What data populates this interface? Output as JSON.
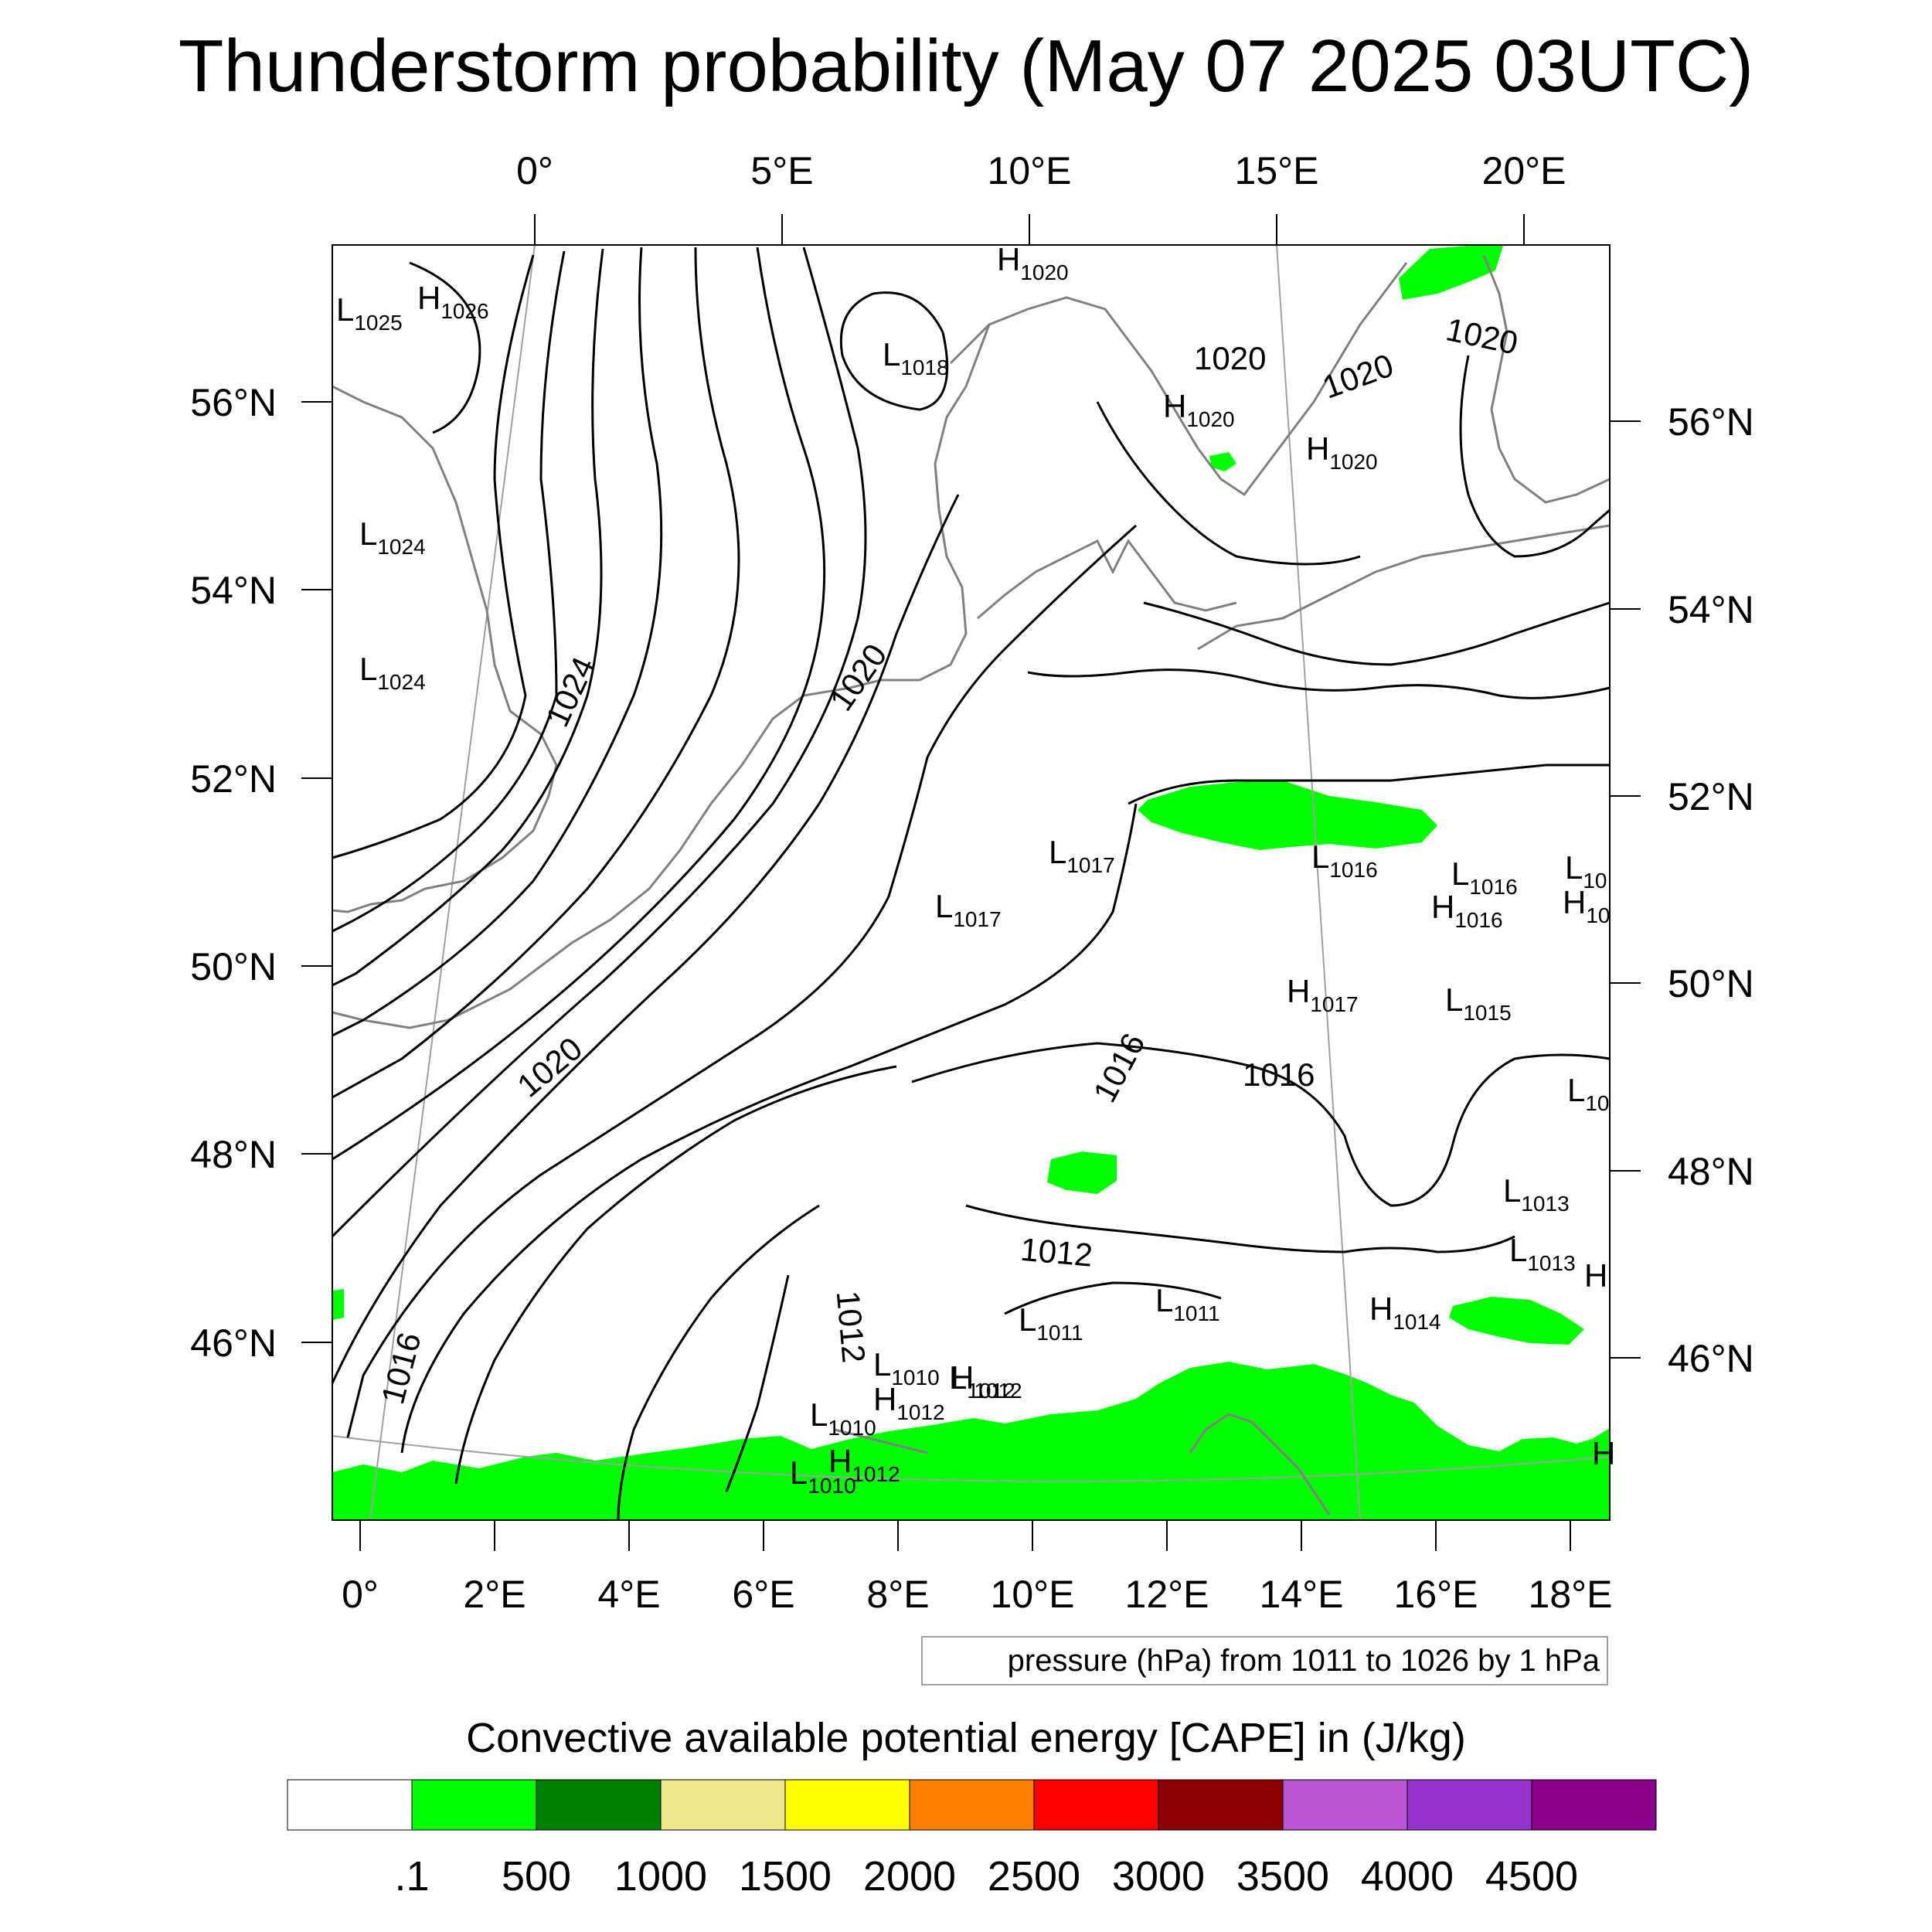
{
  "title": "Thunderstorm probability (May 07 2025 03UTC)",
  "top_axis_labels": [
    "0°",
    "5°E",
    "10°E",
    "15°E",
    "20°E"
  ],
  "bottom_axis_labels": [
    "0°",
    "2°E",
    "4°E",
    "6°E",
    "8°E",
    "10°E",
    "12°E",
    "14°E",
    "16°E",
    "18°E"
  ],
  "left_axis_labels": [
    "56°N",
    "54°N",
    "52°N",
    "50°N",
    "48°N",
    "46°N"
  ],
  "right_axis_labels": [
    "56°N",
    "54°N",
    "52°N",
    "50°N",
    "48°N",
    "46°N"
  ],
  "pressure_centers": [
    {
      "letter": "L",
      "value": "1025"
    },
    {
      "letter": "H",
      "value": "1026"
    },
    {
      "letter": "H",
      "value": "1020"
    },
    {
      "letter": "L",
      "value": "1018"
    },
    {
      "letter": "H",
      "value": "1020"
    },
    {
      "letter": "H",
      "value": "1020"
    },
    {
      "letter": "L",
      "value": "1024"
    },
    {
      "letter": "L",
      "value": "1024"
    },
    {
      "letter": "L",
      "value": "1017"
    },
    {
      "letter": "L",
      "value": "1017"
    },
    {
      "letter": "L",
      "value": "1016"
    },
    {
      "letter": "L",
      "value": "1016"
    },
    {
      "letter": "H",
      "value": "1016"
    },
    {
      "letter": "L",
      "value": "10"
    },
    {
      "letter": "H",
      "value": "10"
    },
    {
      "letter": "H",
      "value": "1017"
    },
    {
      "letter": "L",
      "value": "1015"
    },
    {
      "letter": "L",
      "value": "10"
    },
    {
      "letter": "L",
      "value": "1013"
    },
    {
      "letter": "L",
      "value": "1013"
    },
    {
      "letter": "H",
      "value": ""
    },
    {
      "letter": "H",
      "value": "1014"
    },
    {
      "letter": "L",
      "value": "1011"
    },
    {
      "letter": "L",
      "value": "1011"
    },
    {
      "letter": "L",
      "value": "1010"
    },
    {
      "letter": "H",
      "value": "1012"
    },
    {
      "letter": "L",
      "value": "1010"
    },
    {
      "letter": "H",
      "value": "1012"
    },
    {
      "letter": "L",
      "value": "1012"
    },
    {
      "letter": "H",
      "value": "1012"
    },
    {
      "letter": "L",
      "value": "1010"
    },
    {
      "letter": "H",
      "value": ""
    }
  ],
  "contour_labels": [
    "1020",
    "1020",
    "1020",
    "1024",
    "1020",
    "1020",
    "1016",
    "1016",
    "1016",
    "1012",
    "1012"
  ],
  "info_box": "pressure (hPa) from 1011 to 1026 by 1 hPa",
  "colorbar": {
    "title": "Convective available potential energy [CAPE] in (J/kg)",
    "colors": [
      "#ffffff",
      "#00ff00",
      "#008000",
      "#f0e68c",
      "#ffff00",
      "#ff8000",
      "#ff0000",
      "#8b0000",
      "#ba55d3",
      "#9932cc",
      "#8b008b"
    ],
    "labels": [
      ".1",
      "500",
      "1000",
      "1500",
      "2000",
      "2500",
      "3000",
      "3500",
      "4000",
      "4500"
    ]
  },
  "colors": {
    "cape_green": "#00ff00",
    "isobar": "#000000",
    "coastline": "#808080",
    "grid": "#a0a0a0"
  }
}
